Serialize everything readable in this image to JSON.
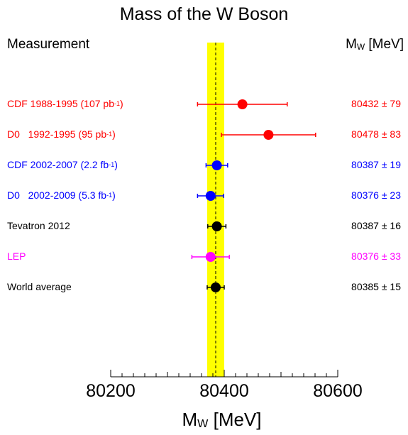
{
  "chart_data": {
    "type": "scatter",
    "title": "Mass of the W Boson",
    "header_left": "Measurement",
    "header_right_base": "M",
    "header_right_sub": "W",
    "header_right_unit": "[MeV]",
    "xlabel_base": "M",
    "xlabel_sub": "W",
    "xlabel_unit": "[MeV]",
    "xlim": [
      80200,
      80600
    ],
    "xticks": [
      "80200",
      "80400",
      "80600"
    ],
    "band": {
      "center": 80385,
      "halfwidth": 15,
      "color": "#ffff00"
    },
    "dashed_line": 80385,
    "points": [
      {
        "label": "CDF 1988-1995 (107 pb",
        "label_sup": "-1",
        "label_end": ")",
        "value": 80432,
        "error": 79,
        "value_text": "80432 ± 79",
        "color": "#ff0000"
      },
      {
        "label": "D0   1992-1995 (95 pb",
        "label_sup": "-1",
        "label_end": ")",
        "value": 80478,
        "error": 83,
        "value_text": "80478 ± 83",
        "color": "#ff0000"
      },
      {
        "label": "CDF 2002-2007 (2.2 fb",
        "label_sup": "-1",
        "label_end": ")",
        "value": 80387,
        "error": 19,
        "value_text": "80387 ± 19",
        "color": "#0000ff"
      },
      {
        "label": "D0   2002-2009 (5.3 fb",
        "label_sup": "-1",
        "label_end": ")",
        "value": 80376,
        "error": 23,
        "value_text": "80376 ± 23",
        "color": "#0000ff"
      },
      {
        "label": "Tevatron 2012",
        "label_sup": "",
        "label_end": "",
        "value": 80387,
        "error": 16,
        "value_text": "80387 ± 16",
        "color": "#000000"
      },
      {
        "label": "LEP",
        "label_sup": "",
        "label_end": "",
        "value": 80376,
        "error": 33,
        "value_text": "80376 ± 33",
        "color": "#ff00ff"
      },
      {
        "label": "World average",
        "label_sup": "",
        "label_end": "",
        "value": 80385,
        "error": 15,
        "value_text": "80385 ± 15",
        "color": "#000000"
      }
    ]
  }
}
